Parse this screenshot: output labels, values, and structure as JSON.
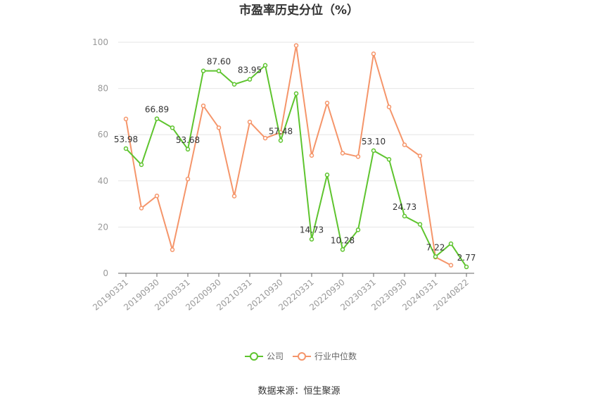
{
  "chart_data": {
    "type": "line",
    "title": "市盈率历史分位（%）",
    "source": "数据来源：恒生聚源",
    "ylim": [
      0,
      100
    ],
    "yticks": [
      0,
      20,
      40,
      60,
      80,
      100
    ],
    "x_tick_labels": [
      "20190331",
      "20190930",
      "20200331",
      "20200930",
      "20210331",
      "20210930",
      "20220331",
      "20220930",
      "20230331",
      "20230930",
      "20240331",
      "20240822"
    ],
    "legend_position": "bottom-center",
    "grid": true,
    "series": [
      {
        "name": "公司",
        "color": "#5ec42e",
        "values": [
          53.98,
          47,
          66.89,
          63,
          53.68,
          87.6,
          87.6,
          81.8,
          83.95,
          90,
          57.48,
          77.8,
          14.73,
          42.6,
          10.28,
          18.8,
          53.1,
          49.3,
          24.73,
          21.2,
          7.22,
          12.8,
          2.77
        ],
        "labels": [
          "53.98",
          "",
          "66.89",
          "",
          "53.68",
          "",
          "87.60",
          "",
          "83.95",
          "",
          "57.48",
          "",
          "14.73",
          "",
          "10.28",
          "",
          "53.10",
          "",
          "24.73",
          "",
          "7.22",
          "",
          "2.77"
        ]
      },
      {
        "name": "行业中位数",
        "color": "#f5956a",
        "values": [
          66.8,
          28.2,
          33.5,
          10.2,
          40.8,
          72.5,
          63,
          33.4,
          65.5,
          58.5,
          61,
          98.6,
          51,
          73.7,
          52,
          50.5,
          95,
          72,
          55.6,
          50.8,
          7,
          3.5,
          null
        ]
      }
    ]
  }
}
